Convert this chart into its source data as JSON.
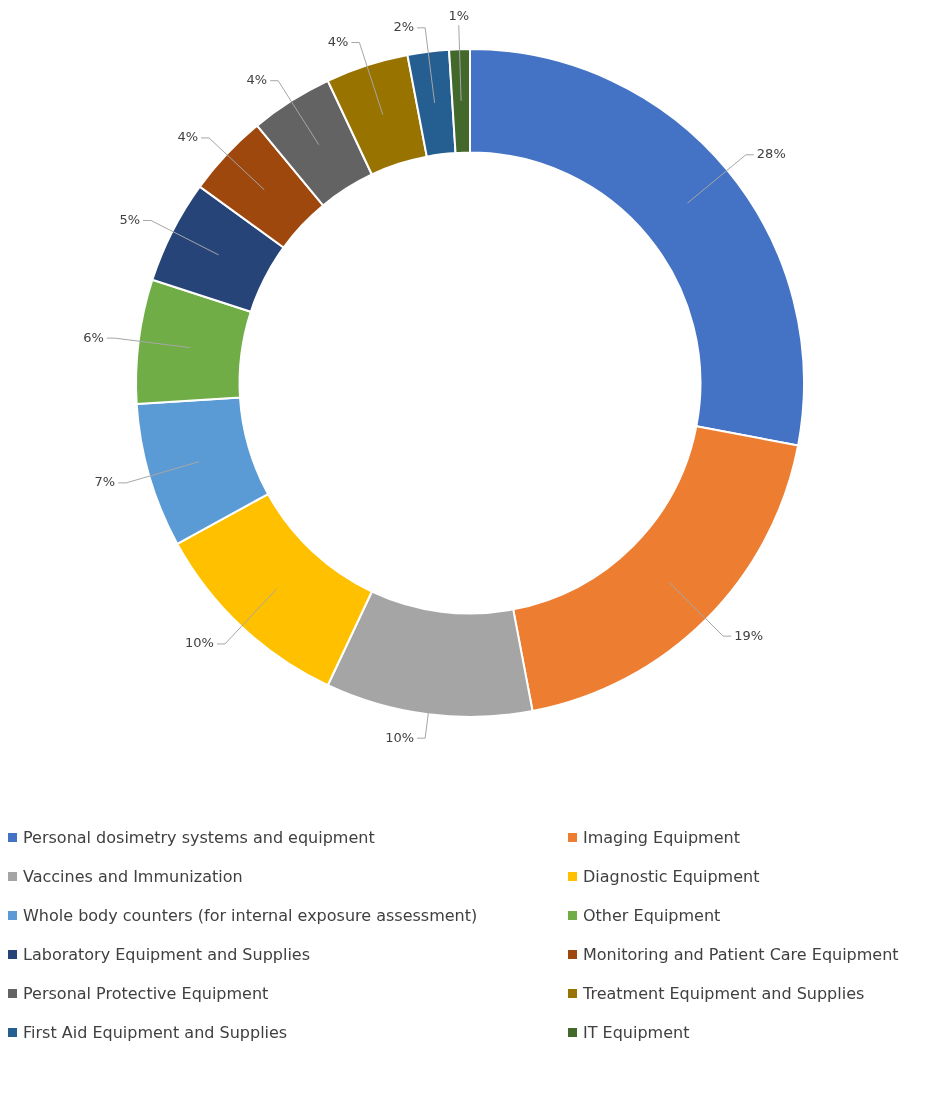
{
  "chart_data": {
    "type": "donut",
    "categories": [
      "Personal dosimetry systems and equipment",
      "Imaging Equipment",
      "Vaccines and Immunization",
      "Diagnostic Equipment",
      "Whole body counters (for internal exposure assessment)",
      "Other Equipment",
      "Laboratory Equipment and Supplies",
      "Monitoring and Patient Care Equipment",
      "Personal Protective Equipment",
      "Treatment Equipment and Supplies",
      "First Aid Equipment and Supplies",
      "IT Equipment"
    ],
    "values": [
      28,
      19,
      10,
      10,
      7,
      6,
      5,
      4,
      4,
      4,
      2,
      1
    ],
    "value_labels": [
      "28%",
      "19%",
      "10%",
      "10%",
      "7%",
      "6%",
      "5%",
      "4%",
      "4%",
      "4%",
      "2%",
      "1%"
    ],
    "colors": [
      "#4472c4",
      "#ed7d31",
      "#a5a5a5",
      "#ffc000",
      "#5b9bd5",
      "#70ad47",
      "#264478",
      "#9e480e",
      "#636363",
      "#997300",
      "#255e91",
      "#43682b"
    ],
    "legend": "bottom"
  }
}
